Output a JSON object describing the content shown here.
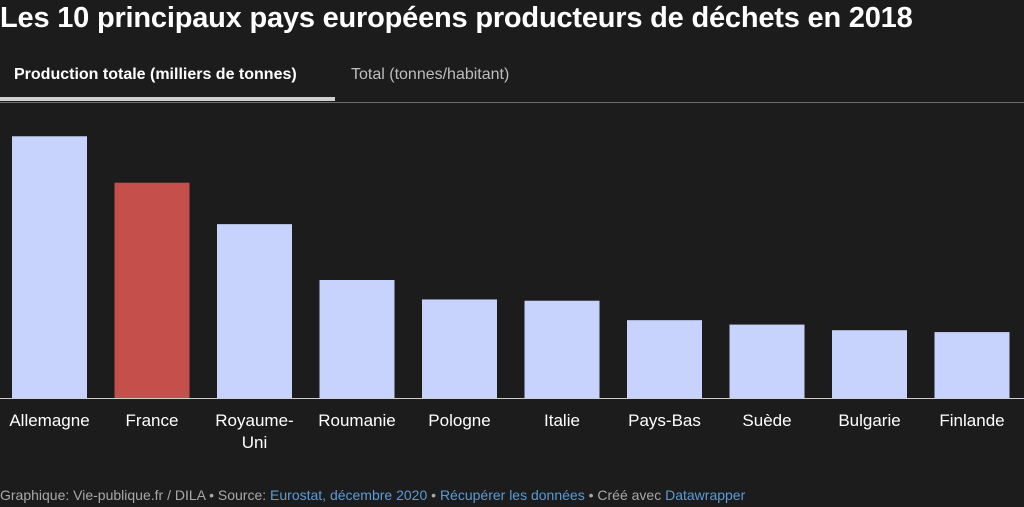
{
  "title": "Les 10 principaux pays européens producteurs de déchets en 2018",
  "tabs": {
    "active": "Production totale (milliers de tonnes)",
    "inactive": "Total (tonnes/habitant)"
  },
  "chart_data": {
    "type": "bar",
    "categories": [
      "Allemagne",
      "France",
      "Royaume-Uni",
      "Roumanie",
      "Pologne",
      "Italie",
      "Pays-Bas",
      "Suède",
      "Bulgarie",
      "Finlande"
    ],
    "category_lines": [
      [
        "Allemagne"
      ],
      [
        "France"
      ],
      [
        "Royaume-",
        "Uni"
      ],
      [
        "Roumanie"
      ],
      [
        "Pologne"
      ],
      [
        "Italie"
      ],
      [
        "Pays-Bas"
      ],
      [
        "Suède"
      ],
      [
        "Bulgarie"
      ],
      [
        "Finlande"
      ]
    ],
    "values": [
      417000,
      343000,
      277000,
      188000,
      157000,
      155000,
      124000,
      117000,
      108000,
      105000
    ],
    "ylim": [
      0,
      470000
    ],
    "colors": [
      "#c7d3fc",
      "#c5504b",
      "#c7d3fc",
      "#c7d3fc",
      "#c7d3fc",
      "#c7d3fc",
      "#c7d3fc",
      "#c7d3fc",
      "#c7d3fc",
      "#c7d3fc"
    ],
    "highlight_color": "#c5504b",
    "base_color": "#c7d3fc",
    "title": "",
    "xlabel": "",
    "ylabel": "",
    "grid": false
  },
  "footer": {
    "prefix": "Graphique: Vie-publique.fr / DILA • Source: ",
    "source_link": "Eurostat, décembre 2020",
    "sep1": " • ",
    "data_link": "Récupérer les données",
    "sep2": " • Créé avec ",
    "tool_link": "Datawrapper"
  }
}
